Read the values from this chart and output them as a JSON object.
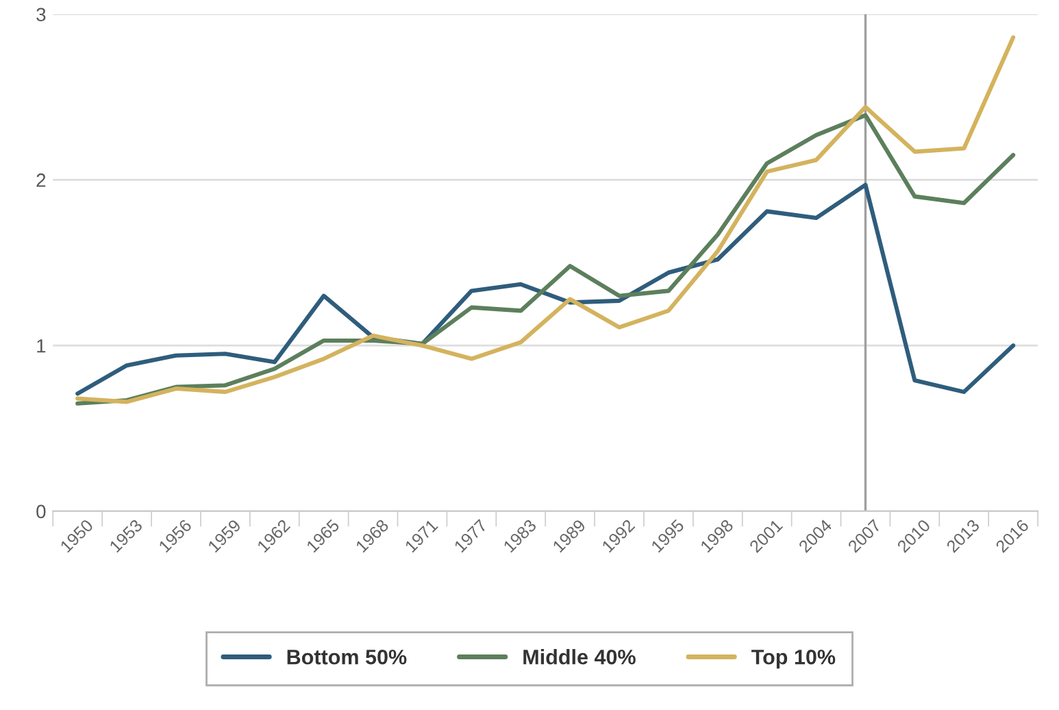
{
  "chart_data": {
    "type": "line",
    "categories": [
      "1950",
      "1953",
      "1956",
      "1959",
      "1962",
      "1965",
      "1968",
      "1971",
      "1977",
      "1983",
      "1989",
      "1992",
      "1995",
      "1998",
      "2001",
      "2004",
      "2007",
      "2010",
      "2013",
      "2016"
    ],
    "series": [
      {
        "name": "Bottom 50%",
        "color": "#2f5d7c",
        "values": [
          0.71,
          0.88,
          0.94,
          0.95,
          0.9,
          1.3,
          1.05,
          1.01,
          1.33,
          1.37,
          1.26,
          1.27,
          1.44,
          1.52,
          1.81,
          1.77,
          1.97,
          0.79,
          0.72,
          1.0
        ]
      },
      {
        "name": "Middle 40%",
        "color": "#5c7f5c",
        "values": [
          0.65,
          0.67,
          0.75,
          0.76,
          0.86,
          1.03,
          1.03,
          1.01,
          1.23,
          1.21,
          1.48,
          1.3,
          1.33,
          1.67,
          2.1,
          2.27,
          2.39,
          1.9,
          1.86,
          2.15
        ]
      },
      {
        "name": "Top 10%",
        "color": "#d4b35e",
        "values": [
          0.68,
          0.66,
          0.74,
          0.72,
          0.81,
          0.92,
          1.06,
          1.0,
          0.92,
          1.02,
          1.28,
          1.11,
          1.21,
          1.57,
          2.05,
          2.12,
          2.44,
          2.17,
          2.19,
          2.86
        ]
      }
    ],
    "ylim": [
      0,
      3
    ],
    "yticks": [
      0,
      1,
      2,
      3
    ],
    "ref_lines": [
      {
        "axis": "x",
        "value": "2007",
        "color": "#a0a0a0"
      }
    ],
    "grid": "y",
    "legend": "bottom",
    "marker": "none",
    "line_style": "solid"
  }
}
